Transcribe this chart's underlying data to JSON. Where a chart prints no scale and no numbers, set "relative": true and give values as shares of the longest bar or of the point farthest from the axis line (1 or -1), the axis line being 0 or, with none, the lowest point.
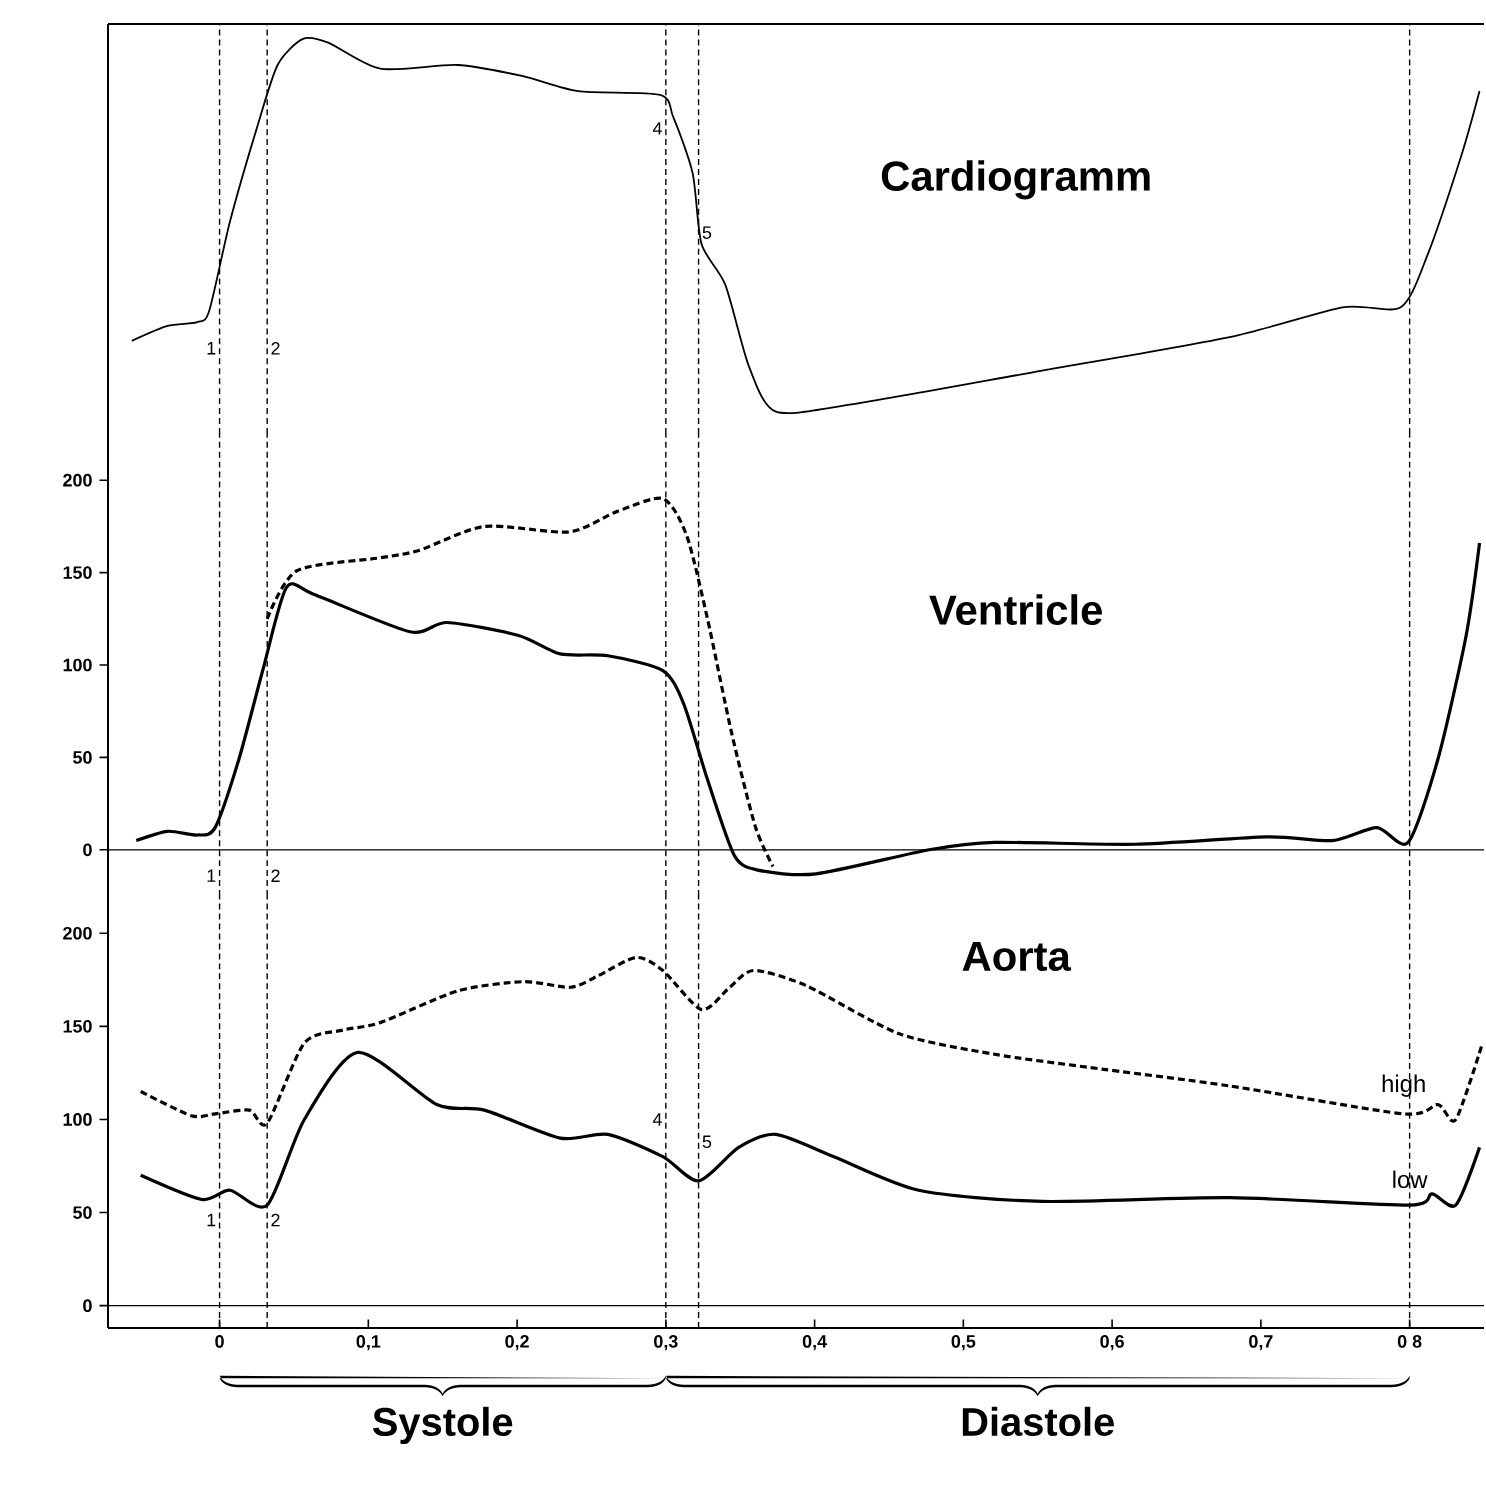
{
  "chart_data": [
    {
      "type": "line",
      "title": "Cardiogramm",
      "relative": true,
      "xlim": [
        -0.075,
        0.85
      ],
      "tick_labels": false,
      "series": [
        {
          "color": "#000000",
          "line_style": "solid",
          "x": [
            -0.059,
            -0.035,
            -0.015,
            -0.007,
            0.007,
            0.025,
            0.039,
            0.056,
            0.073,
            0.108,
            0.16,
            0.204,
            0.241,
            0.296,
            0.305,
            0.318,
            0.324,
            0.34,
            0.356,
            0.374,
            0.426,
            0.553,
            0.679,
            0.755,
            0.794,
            0.812,
            0.835,
            0.847
          ],
          "values": [
            0.19,
            0.23,
            0.24,
            0.27,
            0.51,
            0.76,
            0.93,
            1.0,
            0.99,
            0.92,
            0.93,
            0.9,
            0.86,
            0.85,
            0.79,
            0.64,
            0.45,
            0.34,
            0.12,
            0,
            0.02,
            0.11,
            0.2,
            0.28,
            0.28,
            0.42,
            0.69,
            0.86
          ]
        }
      ],
      "ref_lines": [
        {
          "axis": "x",
          "value": 0,
          "line_style": "dashed"
        },
        {
          "axis": "x",
          "value": 0.032,
          "line_style": "dashed"
        },
        {
          "axis": "x",
          "value": 0.3,
          "line_style": "dashed"
        },
        {
          "axis": "x",
          "value": 0.322,
          "line_style": "dashed"
        },
        {
          "axis": "x",
          "value": 0.8,
          "line_style": "dashed"
        }
      ],
      "annotations": [
        {
          "text": "1",
          "x": 0,
          "y": 0.17
        },
        {
          "text": "2",
          "x": 0.032,
          "y": 0.17
        },
        {
          "text": "4",
          "x": 0.3,
          "y": 0.76
        },
        {
          "text": "5",
          "x": 0.322,
          "y": 0.48
        }
      ]
    },
    {
      "type": "line",
      "title": "Ventricle",
      "xlim": [
        -0.075,
        0.85
      ],
      "ylim": [
        -25,
        225
      ],
      "yticks": [
        0,
        50,
        100,
        150,
        200
      ],
      "tick_labels": "y",
      "series": [
        {
          "color": "#000000",
          "line_style": "solid",
          "x": [
            -0.056,
            -0.035,
            -0.015,
            -0.003,
            0.013,
            0.029,
            0.045,
            0.064,
            0.128,
            0.153,
            0.201,
            0.229,
            0.261,
            0.298,
            0.312,
            0.328,
            0.346,
            0.362,
            0.401,
            0.477,
            0.521,
            0.615,
            0.704,
            0.748,
            0.778,
            0.799,
            0.819,
            0.838,
            0.847
          ],
          "values": [
            5,
            10,
            8,
            12,
            49,
            97,
            142,
            138,
            118,
            123,
            116,
            106,
            105,
            97,
            79,
            38,
            -3,
            -11,
            -13,
            0,
            4,
            3,
            7,
            5,
            12,
            4,
            49,
            116,
            166
          ]
        },
        {
          "color": "#000000",
          "line_style": "dashed",
          "x": [
            0.032,
            0.052,
            0.108,
            0.134,
            0.178,
            0.235,
            0.267,
            0.298,
            0.314,
            0.328,
            0.344,
            0.36,
            0.372
          ],
          "values": [
            125,
            151,
            158,
            162,
            175,
            172,
            183,
            190,
            170,
            125,
            64,
            13,
            -9
          ]
        }
      ],
      "ref_lines": [
        {
          "axis": "y",
          "value": 0,
          "line_style": "solid"
        },
        {
          "axis": "x",
          "value": 0,
          "line_style": "dashed"
        },
        {
          "axis": "x",
          "value": 0.032,
          "line_style": "dashed"
        },
        {
          "axis": "x",
          "value": 0.3,
          "line_style": "dashed"
        },
        {
          "axis": "x",
          "value": 0.322,
          "line_style": "dashed"
        },
        {
          "axis": "x",
          "value": 0.8,
          "line_style": "dashed"
        }
      ],
      "annotations": [
        {
          "text": "1",
          "x": 0,
          "y": -14
        },
        {
          "text": "2",
          "x": 0.032,
          "y": -14
        }
      ]
    },
    {
      "type": "line",
      "title": "Aorta",
      "xlim": [
        -0.075,
        0.85
      ],
      "ylim": [
        -12,
        220
      ],
      "yticks": [
        0,
        50,
        100,
        150,
        200
      ],
      "xticks": [
        0,
        {
          "value": 0.1,
          "label": "0,1"
        },
        {
          "value": 0.2,
          "label": "0,2"
        },
        {
          "value": 0.3,
          "label": "0,3"
        },
        {
          "value": 0.4,
          "label": "0,4"
        },
        {
          "value": 0.5,
          "label": "0,5"
        },
        {
          "value": 0.6,
          "label": "0,6"
        },
        {
          "value": 0.7,
          "label": "0,7"
        },
        {
          "value": 0.8,
          "label": "0 8"
        }
      ],
      "series": [
        {
          "name": "high",
          "color": "#000000",
          "line_style": "dashed",
          "x": [
            -0.053,
            -0.019,
            -0.003,
            0.02,
            0.032,
            0.057,
            0.083,
            0.108,
            0.16,
            0.204,
            0.236,
            0.254,
            0.28,
            0.298,
            0.324,
            0.343,
            0.359,
            0.394,
            0.457,
            0.521,
            0.584,
            0.679,
            0.796,
            0.819,
            0.831,
            0.849
          ],
          "values": [
            115,
            102,
            103,
            105,
            98,
            141,
            148,
            152,
            169,
            174,
            171,
            177,
            187,
            180,
            159,
            171,
            180,
            172,
            146,
            135,
            128,
            118,
            103,
            108,
            100,
            141
          ]
        },
        {
          "name": "low",
          "color": "#000000",
          "line_style": "solid",
          "x": [
            -0.053,
            -0.012,
            0.007,
            0.032,
            0.057,
            0.093,
            0.146,
            0.178,
            0.229,
            0.261,
            0.298,
            0.322,
            0.349,
            0.374,
            0.413,
            0.47,
            0.553,
            0.679,
            0.8,
            0.815,
            0.831,
            0.847
          ],
          "values": [
            70,
            57,
            62,
            54,
            100,
            136,
            108,
            105,
            90,
            92,
            80,
            67,
            85,
            92,
            80,
            62,
            56,
            58,
            54,
            60,
            54,
            85
          ]
        }
      ],
      "ref_lines": [
        {
          "axis": "y",
          "value": 0,
          "line_style": "solid"
        },
        {
          "axis": "x",
          "value": 0,
          "line_style": "dashed"
        },
        {
          "axis": "x",
          "value": 0.032,
          "line_style": "dashed"
        },
        {
          "axis": "x",
          "value": 0.3,
          "line_style": "dashed"
        },
        {
          "axis": "x",
          "value": 0.322,
          "line_style": "dashed"
        },
        {
          "axis": "x",
          "value": 0.8,
          "line_style": "dashed"
        }
      ],
      "annotations": [
        {
          "text": "1",
          "x": 0,
          "y": 46
        },
        {
          "text": "2",
          "x": 0.032,
          "y": 46
        },
        {
          "text": "4",
          "x": 0.3,
          "y": 100
        },
        {
          "text": "5",
          "x": 0.322,
          "y": 88
        },
        "Systole",
        "Diastole"
      ]
    }
  ]
}
